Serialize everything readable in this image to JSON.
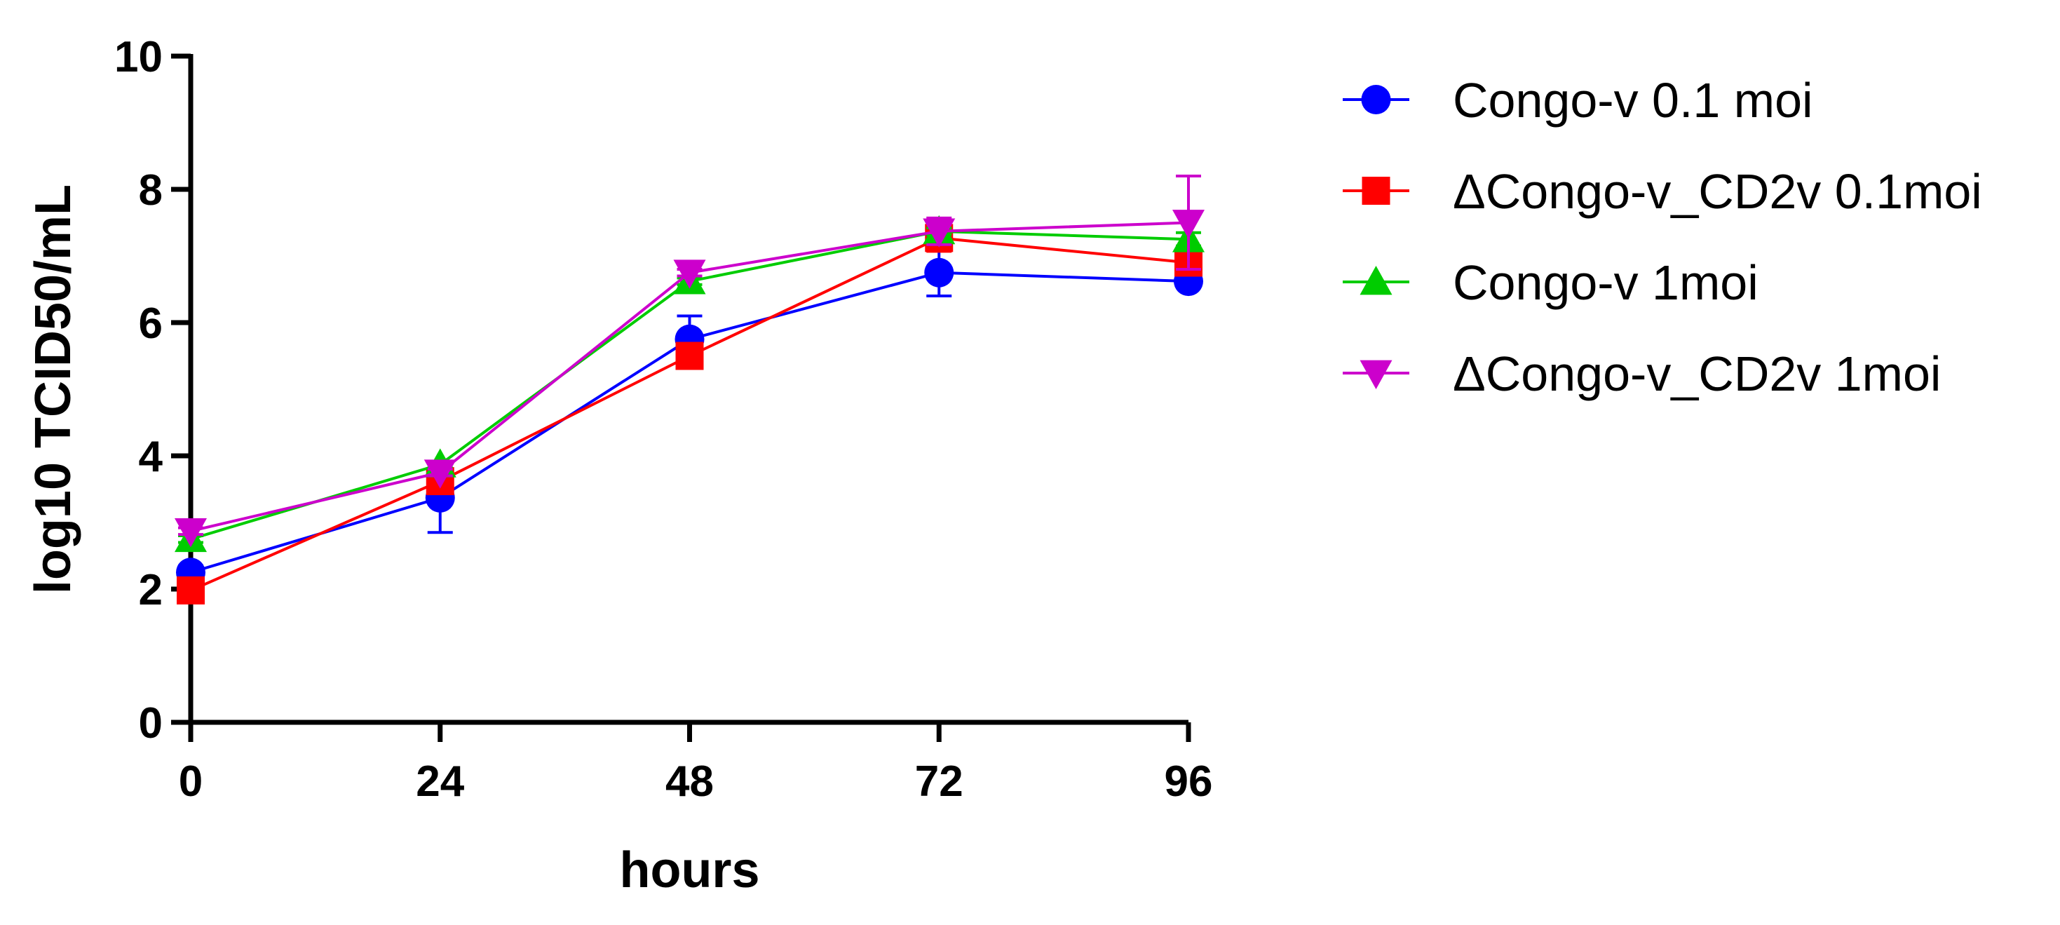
{
  "chart_data": {
    "type": "line",
    "title": "",
    "xlabel": "hours",
    "ylabel": "log10 TCID50/mL",
    "xlim": [
      0,
      96
    ],
    "ylim": [
      0,
      10
    ],
    "x_ticks": [
      "0",
      "24",
      "48",
      "72",
      "96"
    ],
    "y_ticks": [
      "0",
      "2",
      "4",
      "6",
      "8",
      "10"
    ],
    "grid": false,
    "legend_position": "right",
    "x": [
      0,
      24,
      48,
      72,
      96
    ],
    "series": [
      {
        "name": "Congo-v 0.1 moi",
        "color": "#0000ff",
        "marker": "circle",
        "values": [
          2.25,
          3.37,
          5.75,
          6.75,
          6.62
        ],
        "error": [
          0.1,
          0.52,
          0.35,
          0.35,
          0.05
        ]
      },
      {
        "name": "ΔCongo-v_CD2v 0.1moi",
        "color": "#ff0000",
        "marker": "square",
        "values": [
          1.98,
          3.62,
          5.5,
          7.27,
          6.9
        ],
        "error": [
          0.05,
          0.1,
          0.15,
          0.2,
          0.1
        ]
      },
      {
        "name": "Congo-v 1moi",
        "color": "#00cc00",
        "marker": "triangle-up",
        "values": [
          2.75,
          3.87,
          6.62,
          7.37,
          7.25
        ],
        "error": [
          0.05,
          0.05,
          0.05,
          0.05,
          0.1
        ]
      },
      {
        "name": "ΔCongo-v_CD2v 1moi",
        "color": "#cc00cc",
        "marker": "triangle-down",
        "values": [
          2.87,
          3.75,
          6.75,
          7.37,
          7.5
        ],
        "error": [
          0.05,
          0.05,
          0.05,
          0.2,
          0.7
        ]
      }
    ]
  }
}
